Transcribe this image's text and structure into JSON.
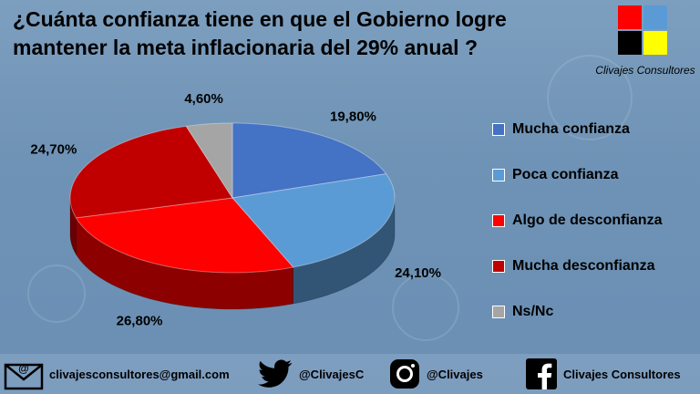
{
  "title": "¿Cuánta confianza tiene en que el Gobierno logre mantener la meta inflacionaria del 29% anual ?",
  "logo": {
    "name": "Clivajes Consultores"
  },
  "chart_data": {
    "type": "pie",
    "slices": [
      {
        "label": "Mucha confianza",
        "value": 19.8,
        "display": "19,80%",
        "color": "#4472c4"
      },
      {
        "label": "Poca confianza",
        "value": 24.1,
        "display": "24,10%",
        "color": "#5b9bd5"
      },
      {
        "label": "Algo de desconfianza",
        "value": 26.8,
        "display": "26,80%",
        "color": "#ff0000"
      },
      {
        "label": "Mucha desconfianza",
        "value": 24.7,
        "display": "24,70%",
        "color": "#c00000"
      },
      {
        "label": "Ns/Nc",
        "value": 4.6,
        "display": "4,60%",
        "color": "#a5a5a5"
      }
    ],
    "legend_position": "right"
  },
  "footer": {
    "email": "clivajesconsultores@gmail.com",
    "twitter": "@ClivajesC",
    "instagram": "@Clivajes",
    "facebook": "Clivajes Consultores"
  }
}
